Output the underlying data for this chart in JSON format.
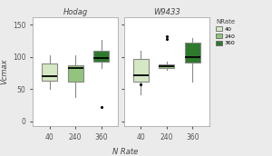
{
  "title_left": "Hodag",
  "title_right": "W9433",
  "xlabel": "N Rate",
  "ylabel": "Vcmax",
  "legend_title": "NRate",
  "legend_labels": [
    "40",
    "240",
    "360"
  ],
  "colors": [
    "#d5e8c4",
    "#93c47d",
    "#2d7a2d"
  ],
  "edge_colors": [
    "#a8c890",
    "#6aa84f",
    "#1e5e1e"
  ],
  "yticks": [
    0,
    50,
    100,
    150
  ],
  "xtick_labels": [
    "40",
    "240",
    "360"
  ],
  "background_color": "#ebebeb",
  "plot_bg": "#ffffff",
  "hodag": {
    "40": {
      "whislo": 50,
      "q1": 63,
      "med": 70,
      "q3": 90,
      "whishi": 103,
      "fliers": []
    },
    "240": {
      "whislo": 38,
      "q1": 62,
      "med": 83,
      "q3": 87,
      "whishi": 103,
      "fliers": []
    },
    "360": {
      "whislo": 83,
      "q1": 93,
      "med": 99,
      "q3": 110,
      "whishi": 127,
      "fliers": [
        22
      ]
    }
  },
  "w9433": {
    "40": {
      "whislo": 42,
      "q1": 62,
      "med": 72,
      "q3": 97,
      "whishi": 110,
      "fliers": [
        57
      ]
    },
    "240": {
      "whislo": 80,
      "q1": 83,
      "med": 86,
      "q3": 89,
      "whishi": 93,
      "fliers": [
        128,
        132
      ]
    },
    "360": {
      "whislo": 62,
      "q1": 91,
      "med": 100,
      "q3": 122,
      "whishi": 130,
      "fliers": []
    }
  },
  "figsize": [
    3.0,
    1.72
  ],
  "dpi": 100
}
